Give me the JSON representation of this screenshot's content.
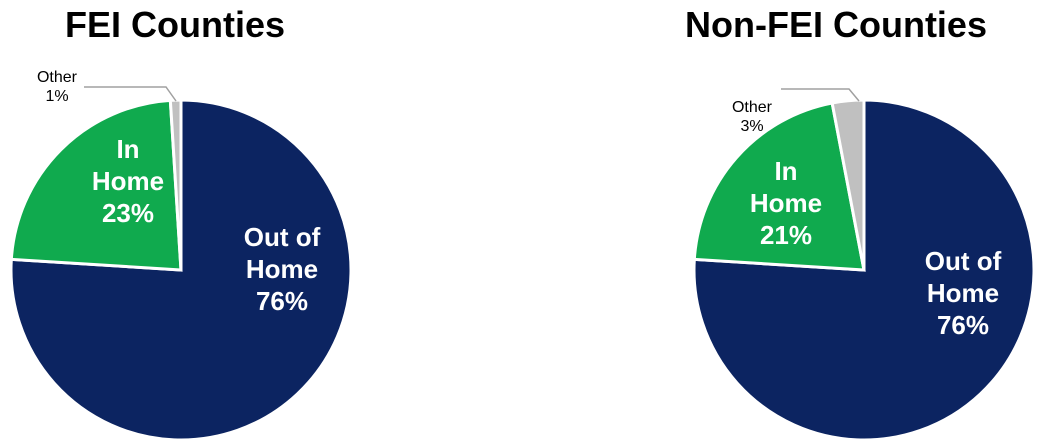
{
  "chart_data": [
    {
      "type": "pie",
      "title": "FEI Counties",
      "categories": [
        "Out of Home",
        "In Home",
        "Other"
      ],
      "values": [
        76,
        23,
        1
      ],
      "labels": [
        {
          "lines": [
            "Out of",
            "Home",
            "76%"
          ]
        },
        {
          "lines": [
            "In",
            "Home",
            "23%"
          ]
        },
        {
          "lines": [
            "Other",
            "1%"
          ]
        }
      ],
      "colors": [
        "#0c2461",
        "#10aa4e",
        "#c0c0c0"
      ]
    },
    {
      "type": "pie",
      "title": "Non-FEI Counties",
      "categories": [
        "Out of Home",
        "In Home",
        "Other"
      ],
      "values": [
        76,
        21,
        3
      ],
      "labels": [
        {
          "lines": [
            "Out of",
            "Home",
            "76%"
          ]
        },
        {
          "lines": [
            "In",
            "Home",
            "21%"
          ]
        },
        {
          "lines": [
            "Other",
            "3%"
          ]
        }
      ],
      "colors": [
        "#0c2461",
        "#10aa4e",
        "#c0c0c0"
      ]
    }
  ]
}
